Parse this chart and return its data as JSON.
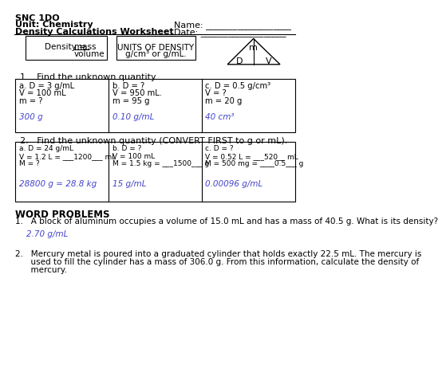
{
  "title_lines": [
    "SNC 1DO",
    "Unit: Chemistry",
    "Density Calculations Worksheet"
  ],
  "name_date": [
    "Name: ___________________",
    "Date: ___________________"
  ],
  "bg_color": "#ffffff",
  "text_color": "#000000",
  "answer_color": "#4444cc",
  "section1_label": "1.   Find the unknown quantity.",
  "section2_label": "2.   Find the unknown quantity (CONVERT FIRST to g or mL).",
  "word_problems_label": "WORD PROBLEMS",
  "units_box": [
    "UNITS OF DENSITY",
    "g/cm³ or g/mL."
  ],
  "triangle_labels": {
    "top": "m",
    "bottom_left": "D",
    "bottom_right": "V"
  },
  "q1_cells": [
    {
      "lines": [
        "a. D = 3 g/mL",
        "V = 100 mL",
        "m = ?"
      ],
      "answer": "300 g"
    },
    {
      "lines": [
        "b. D = ?",
        "V = 950 mL.",
        "m = 95 g"
      ],
      "answer": "0.10 g/mL"
    },
    {
      "lines": [
        "c. D = 0.5 g/cm³",
        "V = ?",
        "m = 20 g"
      ],
      "answer": "40 cm³"
    }
  ],
  "q2_cells": [
    {
      "lines": [
        "a. D = 24 g/mL",
        "V = 1.2 L = ___1200___ mL",
        "M = ?"
      ],
      "answer": "28800 g = 28.8 kg"
    },
    {
      "lines": [
        "b. D = ?",
        "V = 100 mL",
        "M = 1.5 kg = ___1500___ g"
      ],
      "answer": "15 g/mL"
    },
    {
      "lines": [
        "c. D = ?",
        "V = 0.52 L = ___520__ mL",
        "M = 500 mg = ____0.5___ g"
      ],
      "answer": "0.00096 g/mL"
    }
  ],
  "word1": "1.   A block of aluminum occupies a volume of 15.0 mL and has a mass of 40.5 g. What is its density?",
  "word1_answer": "2.70 g/mL",
  "word2_lines": [
    "2.   Mercury metal is poured into a graduated cylinder that holds exactly 22.5 mL. The mercury is",
    "      used to fill the cylinder has a mass of 306.0 g. From this information, calculate the density of",
    "      mercury."
  ]
}
